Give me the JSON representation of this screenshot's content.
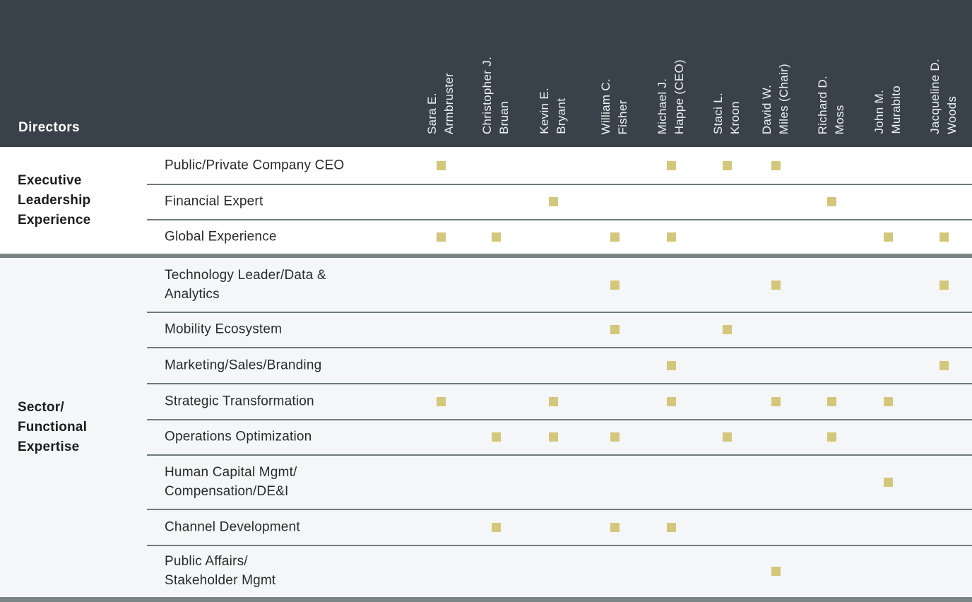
{
  "title": "Directors",
  "colors": {
    "header_bg": "#39424b",
    "header_text": "#eef1f1",
    "mark": "#d3c77c",
    "divider": "#6f7b7b",
    "band": "#7b8584",
    "group2_bg": "#f5f6f7"
  },
  "directors": [
    "Sara E.\nArmbruster",
    "Christopher J.\nBruan",
    "Kevin E.\nBryant",
    "William C.\nFisher",
    "Michael J.\nHappe (CEO)",
    "Staci L.\nKroon",
    "David W.\nMiles (Chair)",
    "Richard D.\nMoss",
    "John M.\nMurabito",
    "Jacqueline D.\nWoods"
  ],
  "groups": [
    {
      "label": "Executive\nLeadership\nExperience",
      "rows": [
        {
          "label": "Public/Private Company CEO",
          "marks": [
            0,
            4,
            5,
            6
          ]
        },
        {
          "label": "Financial Expert",
          "marks": [
            2,
            7
          ]
        },
        {
          "label": "Global Experience",
          "marks": [
            0,
            1,
            3,
            4,
            8,
            9
          ]
        }
      ]
    },
    {
      "label": "Sector/\nFunctional\nExpertise",
      "rows": [
        {
          "label": "Technology Leader/Data &\nAnalytics",
          "marks": [
            3,
            6,
            9
          ]
        },
        {
          "label": "Mobility Ecosystem",
          "marks": [
            3,
            5
          ]
        },
        {
          "label": "Marketing/Sales/Branding",
          "marks": [
            4,
            9
          ]
        },
        {
          "label": "Strategic Transformation",
          "marks": [
            0,
            2,
            4,
            6,
            7,
            8
          ]
        },
        {
          "label": "Operations Optimization",
          "marks": [
            1,
            2,
            3,
            5,
            7
          ]
        },
        {
          "label": "Human Capital Mgmt/\nCompensation/DE&I",
          "marks": [
            8
          ]
        },
        {
          "label": "Channel Development",
          "marks": [
            1,
            3,
            4
          ]
        },
        {
          "label": "Public Affairs/\nStakeholder Mgmt",
          "marks": [
            6
          ]
        }
      ]
    }
  ]
}
